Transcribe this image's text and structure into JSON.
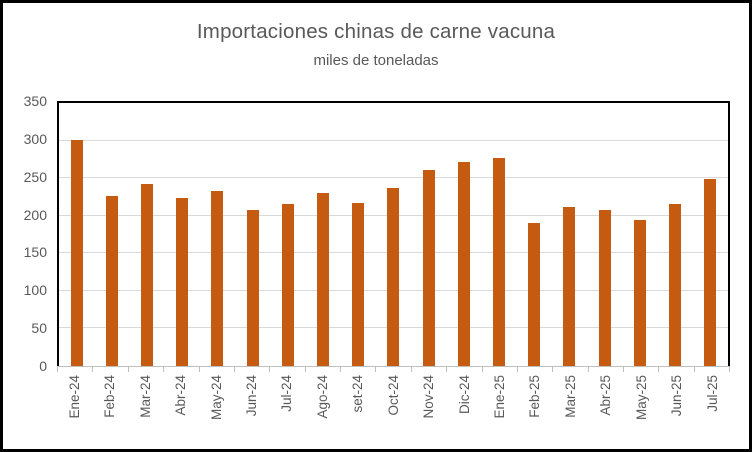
{
  "chart_data": {
    "type": "bar",
    "title": "Importaciones chinas de carne vacuna",
    "subtitle": "miles de toneladas",
    "categories": [
      "Ene-24",
      "Feb-24",
      "Mar-24",
      "Abr-24",
      "May-24",
      "Jun-24",
      "Jul-24",
      "Ago-24",
      "set-24",
      "Oct-24",
      "Nov-24",
      "Dic-24",
      "Ene-25",
      "Feb-25",
      "Mar-25",
      "Abr-25",
      "May-25",
      "Jun-25",
      "Jul-25"
    ],
    "values": [
      301,
      226,
      242,
      224,
      233,
      208,
      215,
      230,
      217,
      237,
      261,
      272,
      277,
      190,
      211,
      208,
      194,
      216,
      249
    ],
    "xlabel": "",
    "ylabel": "",
    "ylim": [
      0,
      350
    ],
    "yticks": [
      0,
      50,
      100,
      150,
      200,
      250,
      300,
      350
    ],
    "grid": true,
    "legend": false,
    "colors": {
      "bar": "#C55A11",
      "gridline": "#D9D9D9",
      "axis": "#BFBFBF",
      "text": "#595959",
      "border": "#000000"
    }
  }
}
